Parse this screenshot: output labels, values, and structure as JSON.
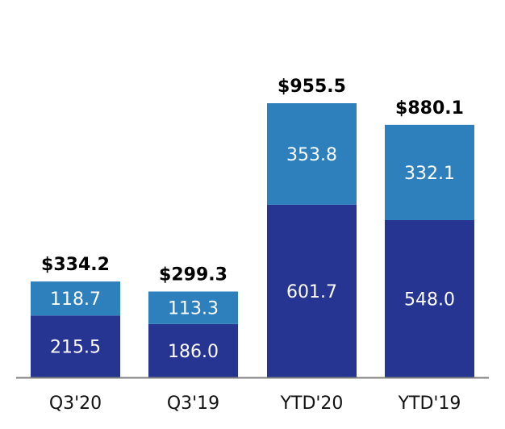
{
  "chart_data": {
    "type": "bar",
    "stacked": true,
    "categories": [
      "Q3'20",
      "Q3'19",
      "YTD'20",
      "YTD'19"
    ],
    "series": [
      {
        "values": [
          215.5,
          186.0,
          601.7,
          548.0
        ],
        "color": "#263592"
      },
      {
        "values": [
          118.7,
          113.3,
          353.8,
          332.1
        ],
        "color": "#2E80BD"
      }
    ],
    "series_labels": [
      [
        "215.5",
        "186.0",
        "601.7",
        "548.0"
      ],
      [
        "118.7",
        "113.3",
        "353.8",
        "332.1"
      ]
    ],
    "totals": [
      334.2,
      299.3,
      955.5,
      880.1
    ],
    "total_labels": [
      "$334.2",
      "$299.3",
      "$955.5",
      "$880.1"
    ],
    "ylim": [
      0,
      955.5
    ],
    "grid": false,
    "legend": "none",
    "title": "",
    "xlabel": "",
    "ylabel": "",
    "axis_color": "#7F7F7F"
  }
}
